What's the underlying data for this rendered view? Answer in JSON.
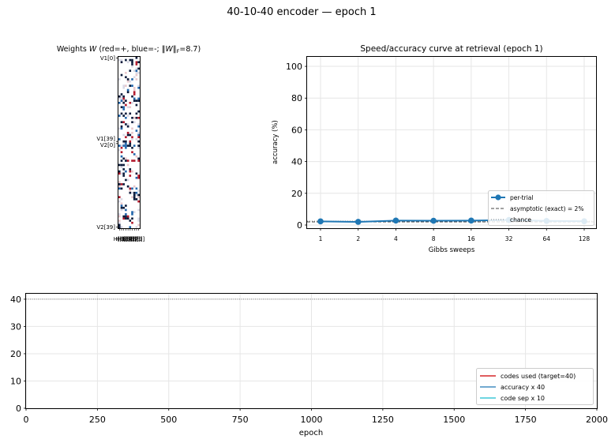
{
  "figure": {
    "suptitle": "40-10-40 encoder — epoch 1"
  },
  "chart_data": [
    {
      "type": "heatmap",
      "title": "Weights W (red=+, blue=-; ‖W‖F=8.7)",
      "title_parts": {
        "pre": "Weights ",
        "w": "W",
        "mid": " (red=+, blue=-; ‖",
        "w2": "W",
        "norm": "‖",
        "sub": "F",
        "post": "=8.7)"
      },
      "rows": 80,
      "cols": 10,
      "ytick_labels": [
        "V1[0]",
        "V1[39]",
        "V2[0]",
        "V2[39]"
      ],
      "ytick_rows": [
        0,
        39,
        40,
        79
      ],
      "xtick_labels": [
        "H[0]",
        "H[1]",
        "H[2]",
        "H[3]",
        "H[4]",
        "H[5]",
        "H[6]",
        "H[7]",
        "H[8]",
        "H[9]"
      ],
      "frobenius_norm": 8.7,
      "colors": {
        "positive": "#b2182b",
        "negative": "#2166ac",
        "zero": "#ffffff"
      }
    },
    {
      "type": "line",
      "title": "Speed/accuracy curve at retrieval (epoch 1)",
      "xlabel": "Gibbs sweeps",
      "ylabel": "accuracy (%)",
      "x_scale": "log2",
      "categories": [
        "1",
        "2",
        "4",
        "8",
        "16",
        "32",
        "64",
        "128"
      ],
      "ylim": [
        -2,
        106
      ],
      "yticks": [
        0,
        20,
        40,
        60,
        80,
        100
      ],
      "grid": true,
      "legend_position": "lower-right",
      "series": [
        {
          "name": "per-trial",
          "values": [
            2.3,
            2.0,
            2.8,
            2.7,
            2.8,
            3.2,
            2.6,
            2.4
          ],
          "color": "#1f77b4",
          "style": "solid-marker"
        }
      ],
      "reference_lines": [
        {
          "name": "asymptotic (exact) = 2%",
          "y": 2.0,
          "style": "dashed",
          "color": "#444444"
        },
        {
          "name": "chance",
          "y": 2.5,
          "style": "dotted",
          "color": "#888888"
        }
      ]
    },
    {
      "type": "line",
      "title": "",
      "xlabel": "epoch",
      "ylabel": "",
      "xlim": [
        0,
        2000
      ],
      "xticks": [
        0,
        250,
        500,
        750,
        1000,
        1250,
        1500,
        1750,
        2000
      ],
      "ylim": [
        0,
        42
      ],
      "yticks": [
        0,
        10,
        20,
        30,
        40
      ],
      "grid": true,
      "legend_position": "lower-right",
      "series": [
        {
          "name": "codes used (target=40)",
          "x": [],
          "values": [],
          "color": "#d62728"
        },
        {
          "name": "accuracy x 40",
          "x": [],
          "values": [],
          "color": "#1f77b4"
        },
        {
          "name": "code sep x 10",
          "x": [],
          "values": [],
          "color": "#17becf"
        }
      ],
      "reference_lines": [
        {
          "name": "target",
          "y": 40,
          "style": "dotted",
          "color": "#555555"
        }
      ]
    }
  ]
}
